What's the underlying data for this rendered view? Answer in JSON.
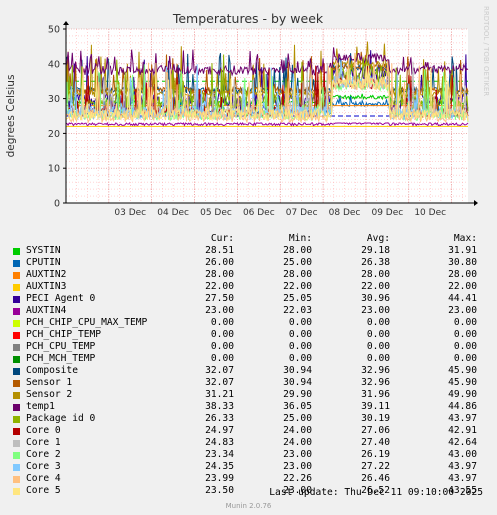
{
  "chart_data": {
    "type": "line",
    "title": "Temperatures - by week",
    "ylabel": "degrees Celsius",
    "side_label": "RRDTOOL / TOBI OETIKER",
    "ylim": [
      0,
      50
    ],
    "yticks": [
      0,
      10,
      20,
      30,
      40,
      50
    ],
    "xlim": [
      "2025-12-02",
      "2025-12-11T09:10"
    ],
    "x_tick_labels": [
      "03 Dec",
      "04 Dec",
      "05 Dec",
      "06 Dec",
      "07 Dec",
      "08 Dec",
      "09 Dec",
      "10 Dec"
    ],
    "grid": true,
    "warning_line": 35,
    "critical_line": 25,
    "legend_headers": {
      "cur": "Cur:",
      "min": "Min:",
      "avg": "Avg:",
      "max": "Max:"
    },
    "series": [
      {
        "name": "SYSTIN",
        "color": "#00cc00",
        "cur": "28.51",
        "min": "28.00",
        "avg": "29.18",
        "max": "31.91"
      },
      {
        "name": "CPUTIN",
        "color": "#0066b3",
        "cur": "26.00",
        "min": "25.00",
        "avg": "26.38",
        "max": "30.80"
      },
      {
        "name": "AUXTIN2",
        "color": "#ff8000",
        "cur": "28.00",
        "min": "28.00",
        "avg": "28.00",
        "max": "28.00"
      },
      {
        "name": "AUXTIN3",
        "color": "#ffcc00",
        "cur": "22.00",
        "min": "22.00",
        "avg": "22.00",
        "max": "22.00"
      },
      {
        "name": "PECI Agent 0",
        "color": "#330099",
        "cur": "27.50",
        "min": "25.05",
        "avg": "30.96",
        "max": "44.41"
      },
      {
        "name": "AUXTIN4",
        "color": "#990099",
        "cur": "23.00",
        "min": "22.03",
        "avg": "23.00",
        "max": "23.00"
      },
      {
        "name": "PCH_CHIP_CPU_MAX_TEMP",
        "color": "#ccff00",
        "cur": "0.00",
        "min": "0.00",
        "avg": "0.00",
        "max": "0.00"
      },
      {
        "name": "PCH_CHIP_TEMP",
        "color": "#ff0000",
        "cur": "0.00",
        "min": "0.00",
        "avg": "0.00",
        "max": "0.00"
      },
      {
        "name": "PCH_CPU_TEMP",
        "color": "#808080",
        "cur": "0.00",
        "min": "0.00",
        "avg": "0.00",
        "max": "0.00"
      },
      {
        "name": "PCH_MCH_TEMP",
        "color": "#008f00",
        "cur": "0.00",
        "min": "0.00",
        "avg": "0.00",
        "max": "0.00"
      },
      {
        "name": "Composite",
        "color": "#00487d",
        "cur": "32.07",
        "min": "30.94",
        "avg": "32.96",
        "max": "45.90"
      },
      {
        "name": "Sensor 1",
        "color": "#b35a00",
        "cur": "32.07",
        "min": "30.94",
        "avg": "32.96",
        "max": "45.90"
      },
      {
        "name": "Sensor 2",
        "color": "#b38f00",
        "cur": "31.21",
        "min": "29.90",
        "avg": "31.96",
        "max": "49.90"
      },
      {
        "name": "temp1",
        "color": "#6b006b",
        "cur": "38.33",
        "min": "36.05",
        "avg": "39.11",
        "max": "44.86"
      },
      {
        "name": "Package id 0",
        "color": "#8fb300",
        "cur": "26.33",
        "min": "25.00",
        "avg": "30.19",
        "max": "43.97"
      },
      {
        "name": "Core 0",
        "color": "#b30000",
        "cur": "24.97",
        "min": "24.00",
        "avg": "27.06",
        "max": "42.91"
      },
      {
        "name": "Core 1",
        "color": "#bebebe",
        "cur": "24.83",
        "min": "24.00",
        "avg": "27.40",
        "max": "42.64"
      },
      {
        "name": "Core 2",
        "color": "#80ff80",
        "cur": "23.34",
        "min": "23.00",
        "avg": "26.19",
        "max": "43.00"
      },
      {
        "name": "Core 3",
        "color": "#80c9ff",
        "cur": "24.35",
        "min": "23.00",
        "avg": "27.22",
        "max": "43.97"
      },
      {
        "name": "Core 4",
        "color": "#ffc080",
        "cur": "23.99",
        "min": "22.26",
        "avg": "26.46",
        "max": "43.97"
      },
      {
        "name": "Core 5",
        "color": "#ffe680",
        "cur": "23.50",
        "min": "23.00",
        "avg": "26.52",
        "max": "43.55"
      }
    ]
  },
  "footer": {
    "last_update": "Last update: Thu Dec 11 09:10:00 2025",
    "munin": "Munin 2.0.76"
  }
}
